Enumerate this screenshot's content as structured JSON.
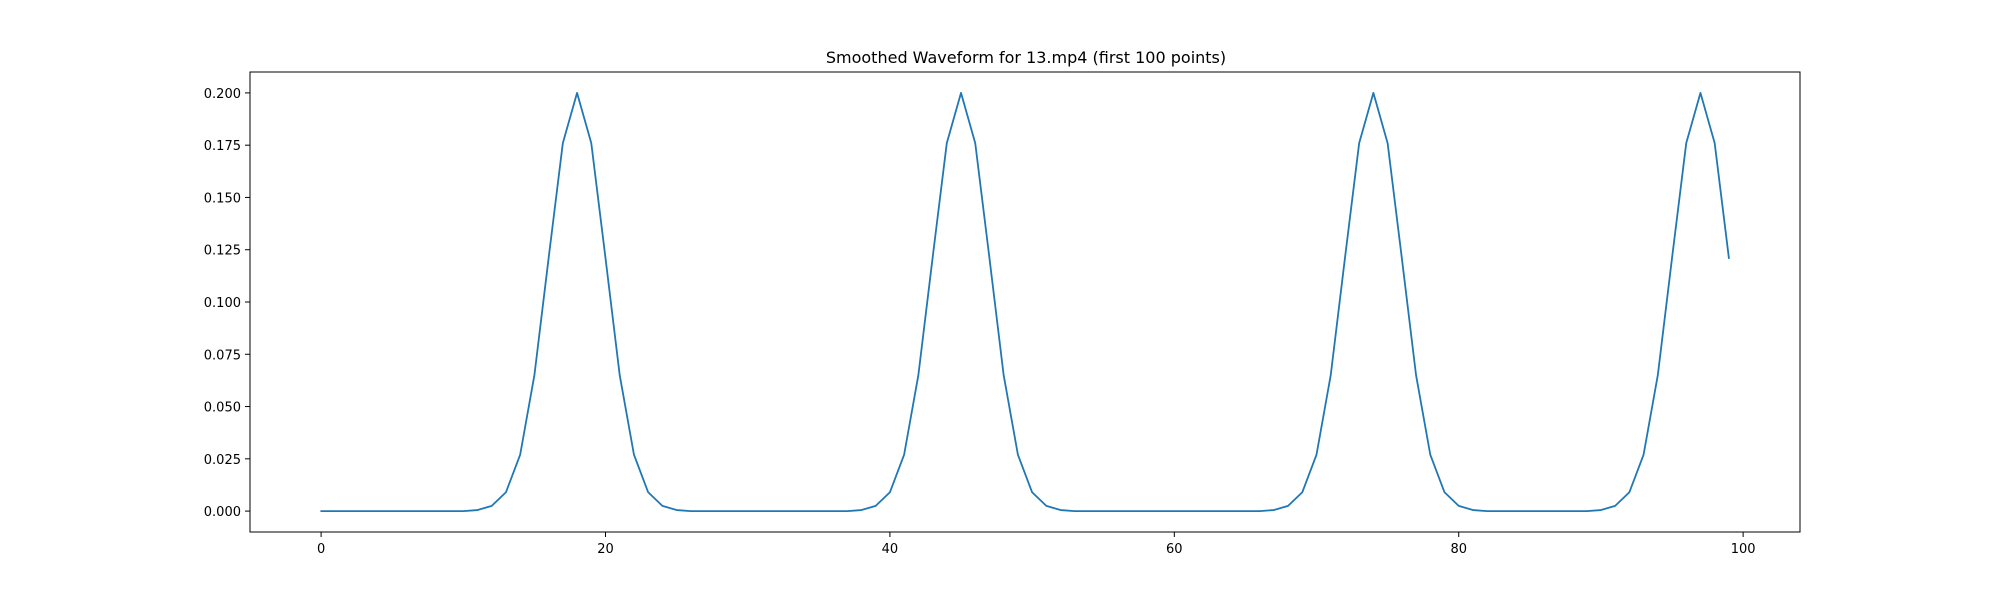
{
  "chart_data": {
    "type": "line",
    "title": "Smoothed Waveform for 13.mp4 (first 100 points)",
    "xlabel": "",
    "ylabel": "",
    "xlim": [
      -5,
      104
    ],
    "ylim": [
      -0.01,
      0.21
    ],
    "xticks": [
      0,
      20,
      40,
      60,
      80,
      100
    ],
    "xtick_labels": [
      "0",
      "20",
      "40",
      "60",
      "80",
      "100"
    ],
    "yticks": [
      0.0,
      0.025,
      0.05,
      0.075,
      0.1,
      0.125,
      0.15,
      0.175,
      0.2
    ],
    "ytick_labels": [
      "0.000",
      "0.025",
      "0.050",
      "0.075",
      "0.100",
      "0.125",
      "0.150",
      "0.175",
      "0.200"
    ],
    "grid": false,
    "legend": "none",
    "series": [
      {
        "color": "#1f77b4",
        "x": [
          0,
          1,
          2,
          3,
          4,
          5,
          6,
          7,
          8,
          9,
          10,
          11,
          12,
          13,
          14,
          15,
          16,
          17,
          18,
          19,
          20,
          21,
          22,
          23,
          24,
          25,
          26,
          27,
          28,
          29,
          30,
          31,
          32,
          33,
          34,
          35,
          36,
          37,
          38,
          39,
          40,
          41,
          42,
          43,
          44,
          45,
          46,
          47,
          48,
          49,
          50,
          51,
          52,
          53,
          54,
          55,
          56,
          57,
          58,
          59,
          60,
          61,
          62,
          63,
          64,
          65,
          66,
          67,
          68,
          69,
          70,
          71,
          72,
          73,
          74,
          75,
          76,
          77,
          78,
          79,
          80,
          81,
          82,
          83,
          84,
          85,
          86,
          87,
          88,
          89,
          90,
          91,
          92,
          93,
          94,
          95,
          96,
          97,
          98,
          99
        ],
        "values": [
          0,
          0,
          0,
          0,
          0,
          0,
          0,
          0,
          0,
          0,
          0,
          0.0005,
          0.0025,
          0.009,
          0.027,
          0.065,
          0.121,
          0.176,
          0.2,
          0.176,
          0.121,
          0.065,
          0.027,
          0.009,
          0.0025,
          0.0005,
          0,
          0,
          0,
          0,
          0,
          0,
          0,
          0,
          0,
          0,
          0,
          0,
          0.0005,
          0.0025,
          0.009,
          0.027,
          0.065,
          0.121,
          0.176,
          0.2,
          0.176,
          0.121,
          0.065,
          0.027,
          0.009,
          0.0025,
          0.0005,
          0,
          0,
          0,
          0,
          0,
          0,
          0,
          0,
          0,
          0,
          0,
          0,
          0,
          0,
          0.0005,
          0.0025,
          0.009,
          0.027,
          0.065,
          0.121,
          0.176,
          0.2,
          0.176,
          0.121,
          0.065,
          0.027,
          0.009,
          0.0025,
          0.0005,
          0,
          0,
          0,
          0,
          0,
          0,
          0,
          0,
          0.0005,
          0.0025,
          0.009,
          0.027,
          0.065,
          0.121,
          0.176,
          0.2,
          0.176,
          0.121
        ]
      }
    ]
  }
}
